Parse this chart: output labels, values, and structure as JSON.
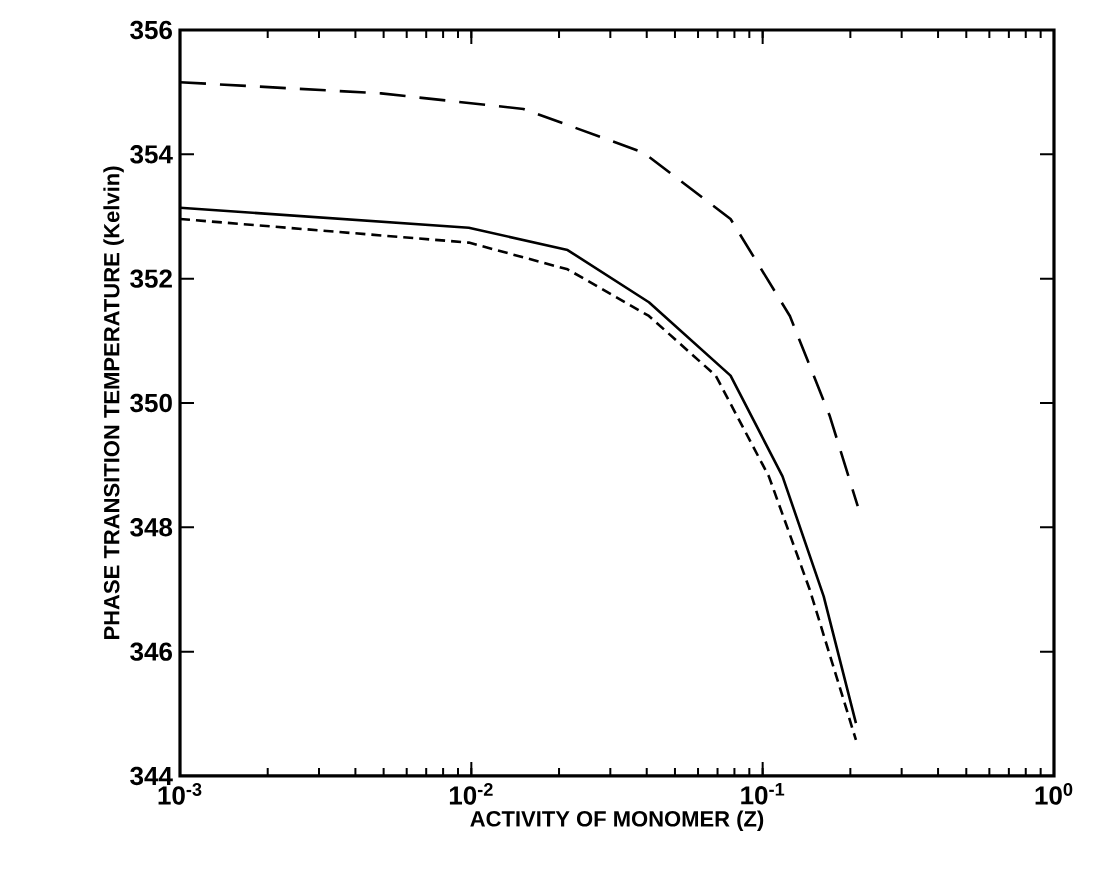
{
  "chart_data": {
    "type": "line",
    "xlabel": "ACTIVITY OF MONOMER (Z)",
    "ylabel": "PHASE TRANSITION TEMPERATURE (Kelvin)",
    "log": "x",
    "xlim": [
      0.001,
      1
    ],
    "ylim": [
      344,
      356
    ],
    "xticks": [
      {
        "value": 0.001,
        "label": "10$^{-3}$"
      },
      {
        "value": 0.01,
        "label": "10$^{-2}$"
      },
      {
        "value": 0.1,
        "label": "10$^{-1}$"
      },
      {
        "value": 1,
        "label": "10$^{0}$"
      }
    ],
    "yticks": [
      344,
      346,
      348,
      350,
      352,
      354,
      356
    ],
    "grid": false,
    "marker": "none",
    "series": [
      {
        "color": "#000000",
        "line_style": "dashed",
        "x": [
          0.001,
          0.0049,
          0.0151,
          0.0389,
          0.0776,
          0.124,
          0.17,
          0.212
        ],
        "values": [
          355.16,
          354.98,
          354.73,
          354.03,
          352.96,
          351.4,
          349.79,
          348.34
        ]
      },
      {
        "color": "#000000",
        "line_style": "solid",
        "x": [
          0.001,
          0.0098,
          0.0214,
          0.0407,
          0.0776,
          0.117,
          0.162,
          0.209
        ],
        "values": [
          353.14,
          352.82,
          352.46,
          351.62,
          350.44,
          348.82,
          346.89,
          344.85
        ]
      },
      {
        "color": "#000000",
        "line_style": "dotted",
        "x": [
          0.001,
          0.0098,
          0.0214,
          0.0407,
          0.069,
          0.105,
          0.145,
          0.209
        ],
        "values": [
          352.96,
          352.58,
          352.15,
          351.4,
          350.44,
          348.82,
          347.0,
          344.58
        ]
      }
    ]
  }
}
